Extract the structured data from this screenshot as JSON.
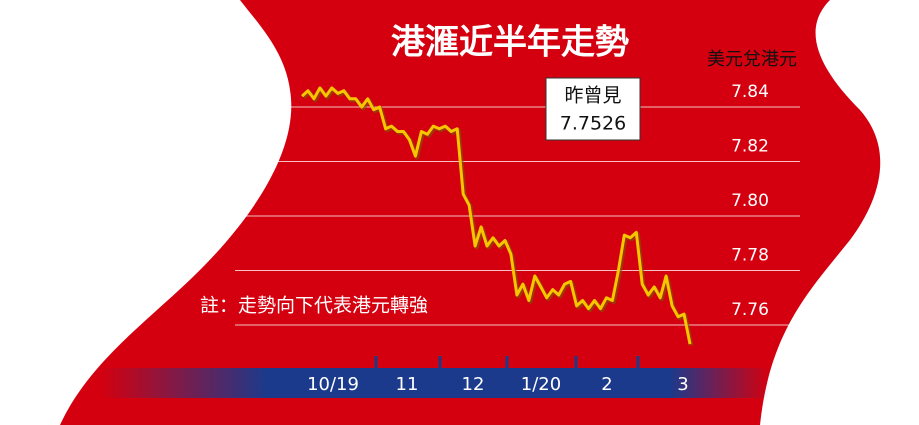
{
  "chart_data": {
    "type": "line",
    "title": "港滙近半年走勢",
    "y_axis_label": "美元兌港元",
    "annotation": {
      "label": "昨曾見",
      "value": 7.7526
    },
    "note": "註：走勢向下代表港元轉強",
    "x_labels": [
      "10/19",
      "11",
      "12",
      "1/20",
      "2",
      "3"
    ],
    "ylim": [
      7.74,
      7.86
    ],
    "yticks": [
      7.76,
      7.78,
      {
        "value": 7.8,
        "label": "7.80"
      },
      7.82,
      7.84
    ],
    "grid": true,
    "series": [
      {
        "color": "#f7c600",
        "values": [
          7.844,
          7.846,
          7.843,
          7.847,
          7.844,
          7.847,
          7.845,
          7.846,
          7.843,
          7.843,
          7.84,
          7.843,
          7.839,
          7.84,
          7.832,
          7.833,
          7.831,
          7.831,
          7.828,
          7.822,
          7.831,
          7.83,
          7.833,
          7.832,
          7.833,
          7.831,
          7.832,
          7.808,
          7.804,
          7.789,
          7.796,
          7.789,
          7.792,
          7.789,
          7.791,
          7.786,
          7.771,
          7.775,
          7.769,
          7.778,
          7.774,
          7.77,
          7.773,
          7.771,
          7.775,
          7.776,
          7.767,
          7.769,
          7.766,
          7.769,
          7.766,
          7.77,
          7.769,
          7.78,
          7.793,
          7.792,
          7.794,
          7.775,
          7.771,
          7.774,
          7.77,
          7.778,
          7.767,
          7.763,
          7.764,
          7.753
        ]
      }
    ]
  }
}
